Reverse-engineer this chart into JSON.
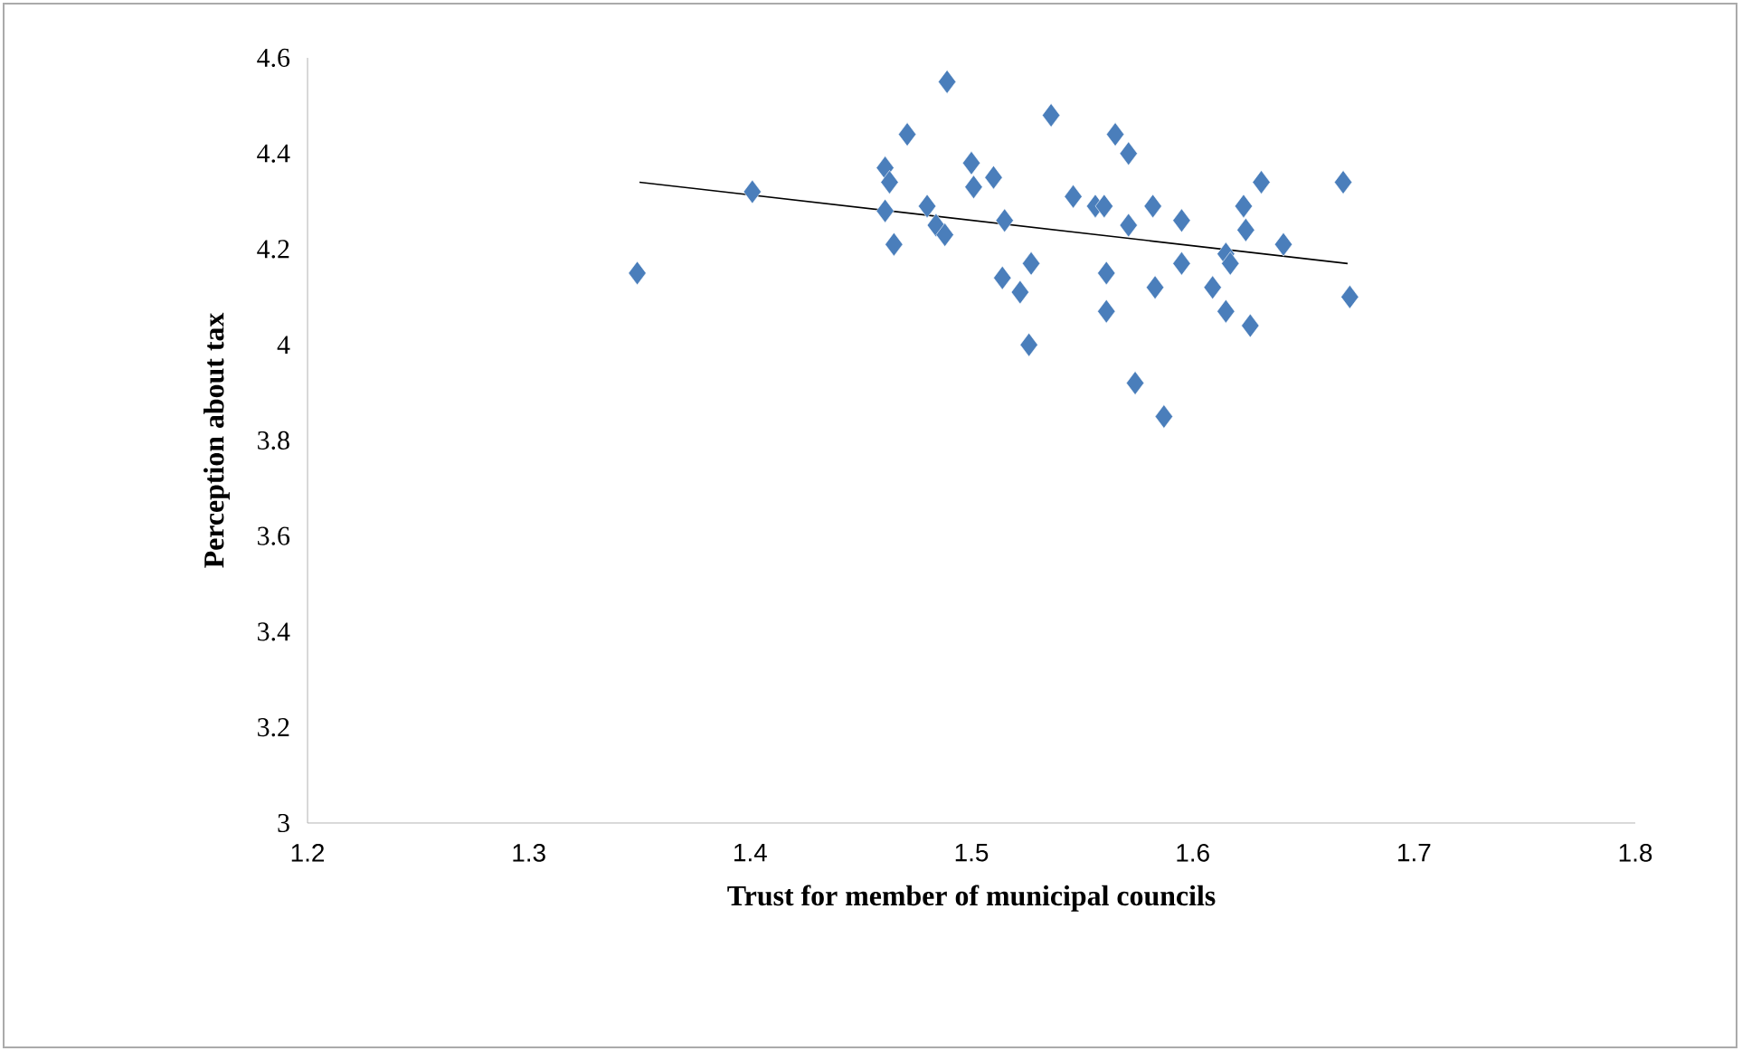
{
  "chart_data": {
    "type": "scatter",
    "xlabel": "Trust for member of municipal councils",
    "ylabel": "Perception about tax",
    "xlim": [
      1.2,
      1.8
    ],
    "ylim": [
      3,
      4.6
    ],
    "xticks": [
      1.2,
      1.3,
      1.4,
      1.5,
      1.6,
      1.7,
      1.8
    ],
    "yticks": [
      3,
      3.2,
      3.4,
      3.6,
      3.8,
      4,
      4.2,
      4.4,
      4.6
    ],
    "marker": "diamond",
    "series": [
      {
        "color": "#4a7ebb",
        "x": [
          1.349,
          1.401,
          1.489,
          1.471,
          1.536,
          1.461,
          1.463,
          1.461,
          1.48,
          1.484,
          1.488,
          1.465,
          1.5,
          1.501,
          1.51,
          1.515,
          1.514,
          1.527,
          1.522,
          1.526,
          1.546,
          1.556,
          1.56,
          1.565,
          1.571,
          1.571,
          1.561,
          1.561,
          1.574,
          1.582,
          1.595,
          1.631,
          1.623,
          1.624,
          1.615,
          1.617,
          1.609,
          1.615,
          1.626,
          1.595,
          1.583,
          1.587,
          1.641,
          1.668,
          1.671
        ],
        "values": [
          4.15,
          4.32,
          4.55,
          4.44,
          4.48,
          4.37,
          4.34,
          4.28,
          4.29,
          4.25,
          4.23,
          4.21,
          4.38,
          4.33,
          4.35,
          4.26,
          4.14,
          4.17,
          4.11,
          4.0,
          4.31,
          4.29,
          4.29,
          4.44,
          4.4,
          4.25,
          4.15,
          4.07,
          3.92,
          4.29,
          4.26,
          4.34,
          4.29,
          4.24,
          4.19,
          4.17,
          4.12,
          4.07,
          4.04,
          4.17,
          4.12,
          3.85,
          4.21,
          4.34,
          4.1
        ]
      },
      {
        "type": "line",
        "marker": "none",
        "color": "#000000",
        "x": [
          1.35,
          1.67
        ],
        "values": [
          4.34,
          4.17
        ]
      }
    ]
  }
}
